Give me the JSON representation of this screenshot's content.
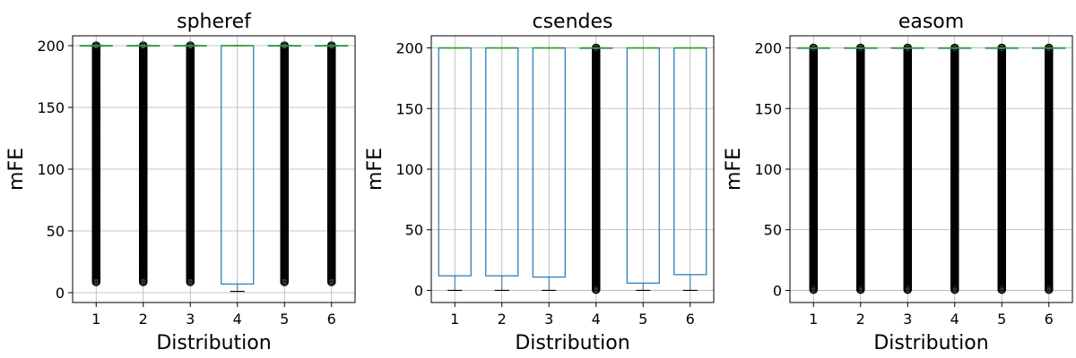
{
  "chart_data": [
    {
      "type": "box",
      "title": "spheref",
      "xlabel": "Distribution",
      "ylabel": "mFE",
      "ylim": [
        -8,
        208
      ],
      "grid": true,
      "categories": [
        "1",
        "2",
        "3",
        "4",
        "5",
        "6"
      ],
      "yticks": [
        0,
        50,
        100,
        150,
        200
      ],
      "boxes": [
        {
          "q1": 200,
          "median": 200,
          "q3": 200,
          "whisker_low": 200,
          "whisker_high": 200,
          "outliers": [
            8,
            200
          ]
        },
        {
          "q1": 200,
          "median": 200,
          "q3": 200,
          "whisker_low": 200,
          "whisker_high": 200,
          "outliers": [
            8,
            200
          ]
        },
        {
          "q1": 200,
          "median": 200,
          "q3": 200,
          "whisker_low": 200,
          "whisker_high": 200,
          "outliers": [
            8,
            200
          ]
        },
        {
          "q1": 7,
          "median": 200,
          "q3": 200,
          "whisker_low": 1,
          "whisker_high": 200,
          "outliers": []
        },
        {
          "q1": 200,
          "median": 200,
          "q3": 200,
          "whisker_low": 200,
          "whisker_high": 200,
          "outliers": [
            8,
            200
          ]
        },
        {
          "q1": 200,
          "median": 200,
          "q3": 200,
          "whisker_low": 200,
          "whisker_high": 200,
          "outliers": [
            8,
            200
          ]
        }
      ]
    },
    {
      "type": "box",
      "title": "csendes",
      "xlabel": "Distribution",
      "ylabel": "mFE",
      "ylim": [
        -10,
        210
      ],
      "grid": true,
      "categories": [
        "1",
        "2",
        "3",
        "4",
        "5",
        "6"
      ],
      "yticks": [
        0,
        50,
        100,
        150,
        200
      ],
      "boxes": [
        {
          "q1": 12,
          "median": 200,
          "q3": 200,
          "whisker_low": 0,
          "whisker_high": 200,
          "outliers": []
        },
        {
          "q1": 12,
          "median": 200,
          "q3": 200,
          "whisker_low": 0,
          "whisker_high": 200,
          "outliers": []
        },
        {
          "q1": 11,
          "median": 200,
          "q3": 200,
          "whisker_low": 0,
          "whisker_high": 200,
          "outliers": []
        },
        {
          "q1": 200,
          "median": 200,
          "q3": 200,
          "whisker_low": 200,
          "whisker_high": 200,
          "outliers": [
            0,
            200
          ]
        },
        {
          "q1": 6,
          "median": 200,
          "q3": 200,
          "whisker_low": 0,
          "whisker_high": 200,
          "outliers": []
        },
        {
          "q1": 13,
          "median": 200,
          "q3": 200,
          "whisker_low": 0,
          "whisker_high": 200,
          "outliers": []
        }
      ]
    },
    {
      "type": "box",
      "title": "easom",
      "xlabel": "Distribution",
      "ylabel": "mFE",
      "ylim": [
        -10,
        210
      ],
      "grid": true,
      "categories": [
        "1",
        "2",
        "3",
        "4",
        "5",
        "6"
      ],
      "yticks": [
        0,
        50,
        100,
        150,
        200
      ],
      "boxes": [
        {
          "q1": 200,
          "median": 200,
          "q3": 200,
          "whisker_low": 200,
          "whisker_high": 200,
          "outliers": [
            0,
            200
          ]
        },
        {
          "q1": 200,
          "median": 200,
          "q3": 200,
          "whisker_low": 200,
          "whisker_high": 200,
          "outliers": [
            0,
            200
          ]
        },
        {
          "q1": 200,
          "median": 200,
          "q3": 200,
          "whisker_low": 200,
          "whisker_high": 200,
          "outliers": [
            0,
            200
          ]
        },
        {
          "q1": 200,
          "median": 200,
          "q3": 200,
          "whisker_low": 200,
          "whisker_high": 200,
          "outliers": [
            0,
            200
          ]
        },
        {
          "q1": 200,
          "median": 200,
          "q3": 200,
          "whisker_low": 200,
          "whisker_high": 200,
          "outliers": [
            0,
            200
          ]
        },
        {
          "q1": 200,
          "median": 200,
          "q3": 200,
          "whisker_low": 200,
          "whisker_high": 200,
          "outliers": [
            0,
            200
          ]
        }
      ]
    }
  ],
  "style": {
    "box_color": "#1f77b4",
    "median_color": "#2ca02c",
    "whisker_color": "#000000",
    "outlier_color": "#000000",
    "grid_color": "#b0b0b0"
  }
}
